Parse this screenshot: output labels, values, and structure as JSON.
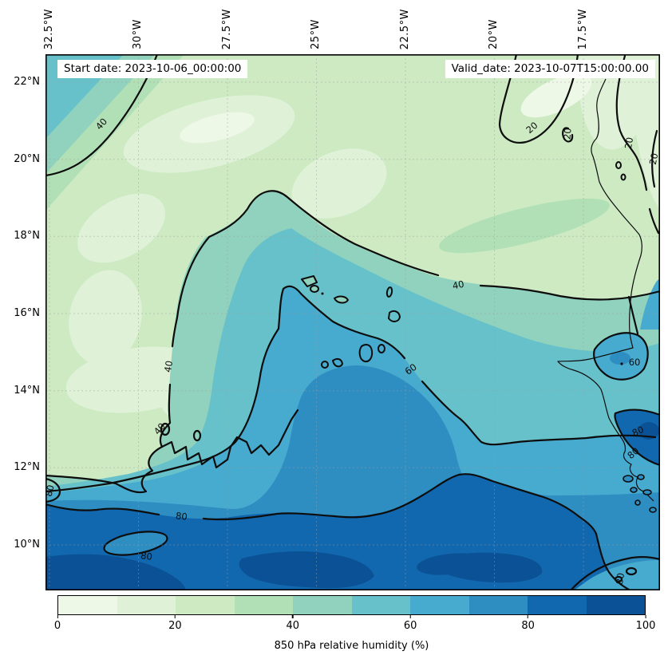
{
  "annotations": {
    "start_date": "Start date: 2023-10-06_00:00:00",
    "valid_date": "Valid_date: 2023-10-07T15:00:00.00"
  },
  "axes": {
    "lon_ticks": [
      "32.5°W",
      "30°W",
      "27.5°W",
      "25°W",
      "22.5°W",
      "20°W",
      "17.5°W"
    ],
    "lat_ticks": [
      "22°N",
      "20°N",
      "18°N",
      "16°N",
      "14°N",
      "12°N",
      "10°N"
    ]
  },
  "colorbar": {
    "label": "850 hPa relative humidity (%)",
    "ticks": [
      "0",
      "20",
      "40",
      "60",
      "80",
      "100"
    ],
    "colors": [
      "#edf8e7",
      "#dff2d8",
      "#cdeac3",
      "#b2e0b6",
      "#90d2bd",
      "#67c1ca",
      "#47aacf",
      "#2f8ec1",
      "#1268ae",
      "#0a5195"
    ],
    "outline_color": "#000000"
  },
  "contour_labels": [
    {
      "text": "40"
    },
    {
      "text": "20"
    },
    {
      "text": "20"
    },
    {
      "text": "20"
    },
    {
      "text": "20"
    },
    {
      "text": "40"
    },
    {
      "text": "40"
    },
    {
      "text": "40"
    },
    {
      "text": "60"
    },
    {
      "text": "60"
    },
    {
      "text": "80"
    },
    {
      "text": "80"
    },
    {
      "text": "80"
    },
    {
      "text": "80"
    },
    {
      "text": "80"
    },
    {
      "text": "80"
    }
  ],
  "chart_data": {
    "type": "filled_contour_map",
    "field": "850 hPa relative humidity",
    "units": "%",
    "title": "",
    "xlabel_ticks": [
      "32.5°W",
      "30°W",
      "27.5°W",
      "25°W",
      "22.5°W",
      "20°W",
      "17.5°W"
    ],
    "ylabel_ticks": [
      "22°N",
      "20°N",
      "18°N",
      "16°N",
      "14°N",
      "12°N",
      "10°N"
    ],
    "fill_levels": [
      0,
      10,
      20,
      30,
      40,
      50,
      60,
      70,
      80,
      90,
      100
    ],
    "contour_line_levels": [
      20,
      40,
      60,
      80
    ],
    "colormap": "GnBu",
    "colorbar_range": [
      0,
      100
    ],
    "grid": "dashed lat/lon graticule every 2.5 deg lon / 2 deg lat",
    "annotations": [
      "Start date: 2023-10-06_00:00:00",
      "Valid_date: 2023-10-07T15:00:00.00"
    ],
    "geographic_features": [
      "West African coastline",
      "Cap-Vert peninsula",
      "Cape Verde islands",
      "Bijagos islands"
    ],
    "pattern_summary": "Dry air (20-40%) over the north and center; <20% pocket in the NE corner near the African coast; moist plume (60-80%) bulging north over the Cape Verde islands; 80-100% humidity band along the southern edge below about 11.5N; small 60-70% and 80-90% cells hugging the Senegal coast"
  }
}
